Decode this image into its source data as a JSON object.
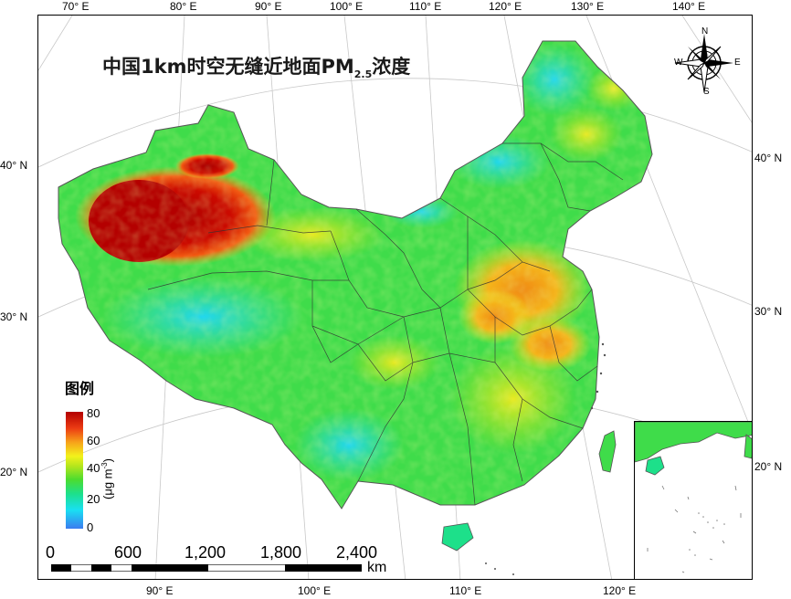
{
  "title": {
    "main": "中国1km时空无缝近地面PM",
    "subscript": "2.5",
    "suffix": "浓度"
  },
  "graticule": {
    "top": [
      "70° E",
      "80° E",
      "90° E",
      "100° E",
      "110° E",
      "120° E",
      "130° E",
      "140° E"
    ],
    "bottom": [
      "90° E",
      "100° E",
      "110° E",
      "120° E"
    ],
    "left": [
      "40° N",
      "30° N",
      "20° N"
    ],
    "right": [
      "40° N",
      "30° N",
      "20° N"
    ]
  },
  "legend": {
    "title": "图例",
    "ticks": [
      "80",
      "60",
      "40",
      "20",
      "0"
    ],
    "unit_main": "(μg m",
    "unit_exp": "-3",
    "unit_close": ")",
    "ramp_colors": [
      "#3b7cf0",
      "#19e0f2",
      "#1de08a",
      "#4cdc2f",
      "#f3f21b",
      "#f7a21a",
      "#ec3b13",
      "#b30000"
    ]
  },
  "compass": {
    "n": "N",
    "s": "S",
    "e": "E",
    "w": "W"
  },
  "scale_bar": {
    "labels": [
      "0",
      "600",
      "1,200",
      "1,800",
      "2,400"
    ],
    "unit": "km"
  }
}
